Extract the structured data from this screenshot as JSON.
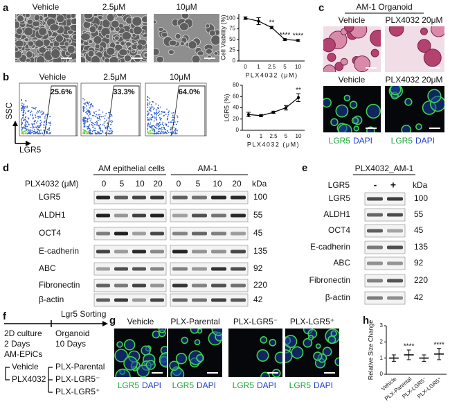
{
  "chart_data": [
    {
      "type": "line",
      "y_label": "Cell Viability (%)",
      "x_label": "PLX4032 (μM)",
      "categories": [
        "0",
        "1",
        "2.5",
        "5",
        "10"
      ],
      "values": [
        100,
        93,
        78,
        50,
        48
      ],
      "errors": [
        3,
        8,
        3,
        2,
        2
      ],
      "color": "#000000",
      "ylim": [
        0,
        110
      ],
      "yticks": [
        0,
        25,
        50,
        75,
        100
      ],
      "annotations": [
        {
          "text": "**",
          "x": "2.5"
        },
        {
          "text": "****",
          "x": "5"
        },
        {
          "text": "****",
          "x": "10"
        }
      ]
    },
    {
      "type": "line",
      "y_label": "LGR5 (%)",
      "x_label": "PLX4032 (μM)",
      "categories": [
        "0",
        "1",
        "2.5",
        "5",
        "10"
      ],
      "values": [
        28,
        26,
        32,
        40,
        58
      ],
      "errors": [
        4,
        2,
        2,
        4,
        7
      ],
      "color": "#000000",
      "ylim": [
        0,
        80
      ],
      "yticks": [
        0,
        20,
        40,
        60,
        80
      ],
      "annotations": [
        {
          "text": "**",
          "x": "10"
        }
      ]
    },
    {
      "type": "dot",
      "y_label": "Relative Size Change",
      "categories": [
        "Vehicle",
        "PLX-Parental",
        "PLX-LGR5⁻",
        "PLX-LGR5⁺"
      ],
      "values": [
        1.0,
        1.2,
        1.0,
        1.25
      ],
      "errors": [
        0.2,
        0.3,
        0.2,
        0.35
      ],
      "color": "#000000",
      "ylim": [
        0,
        3
      ],
      "yticks": [
        0,
        1,
        2,
        3
      ],
      "annotations": [
        {
          "text": "****",
          "x": "PLX-Parental"
        },
        {
          "text": "****",
          "x": "PLX-LGR5⁺"
        }
      ]
    }
  ],
  "panels": {
    "a": {
      "label": "a",
      "conditions": [
        "Vehicle",
        "2.5μM",
        "10μM"
      ]
    },
    "b": {
      "label": "b",
      "conditions": [
        "Vehicle",
        "2.5μM",
        "10μM"
      ],
      "percentages": [
        "25.6%",
        "33.3%",
        "64.0%"
      ],
      "y_axis": "SSC",
      "x_axis": "LGR5"
    },
    "c": {
      "label": "c",
      "title": "AM-1 Organoid",
      "row1": [
        "Vehicle",
        "PLX4032 20μM"
      ],
      "row2": [
        "Vehicle",
        "PLX4032 20μM"
      ],
      "stain": [
        "LGR5",
        "DAPI"
      ]
    },
    "d": {
      "label": "d",
      "groups": [
        "AM epithelial cells",
        "AM-1"
      ],
      "treatment": "PLX4032 (μM)",
      "doses": [
        "0",
        "5",
        "10",
        "20",
        "0",
        "5",
        "10",
        "20"
      ],
      "unit": "kDa",
      "proteins": [
        "LGR5",
        "ALDH1",
        "OCT4",
        "E-cadherin",
        "ABC",
        "Fibronectin",
        "β-actin"
      ],
      "kda": [
        "100",
        "55",
        "45",
        "135",
        "92",
        "220",
        "42"
      ]
    },
    "e": {
      "label": "e",
      "title": "PLX4032_AM-1",
      "factor": "LGR5",
      "levels": [
        "-",
        "+"
      ],
      "unit": "kDa",
      "proteins": [
        "LGR5",
        "ALDH1",
        "OCT4",
        "E-cadherin",
        "ABC",
        "Fibronectin",
        "β-actin"
      ],
      "kda": [
        "100",
        "55",
        "45",
        "135",
        "92",
        "220",
        "42"
      ]
    },
    "f": {
      "label": "f",
      "step": "Lgr5 Sorting",
      "left": [
        "2D culture",
        "2 Days",
        "AM-EPiCs"
      ],
      "right": [
        "Organoid",
        "10 Days"
      ],
      "treatments": [
        "Vehicle",
        "PLX4032"
      ],
      "outcomes": [
        "PLX-Parental",
        "PLX-LGR5⁻",
        "PLX-LGR5⁺"
      ]
    },
    "g": {
      "label": "g",
      "conditions": [
        "Vehicle",
        "PLX-Parental",
        "PLX-LGR5⁻",
        "PLX-LGR5⁺"
      ],
      "stain": [
        "LGR5",
        "DAPI"
      ]
    },
    "h": {
      "label": "h"
    }
  }
}
